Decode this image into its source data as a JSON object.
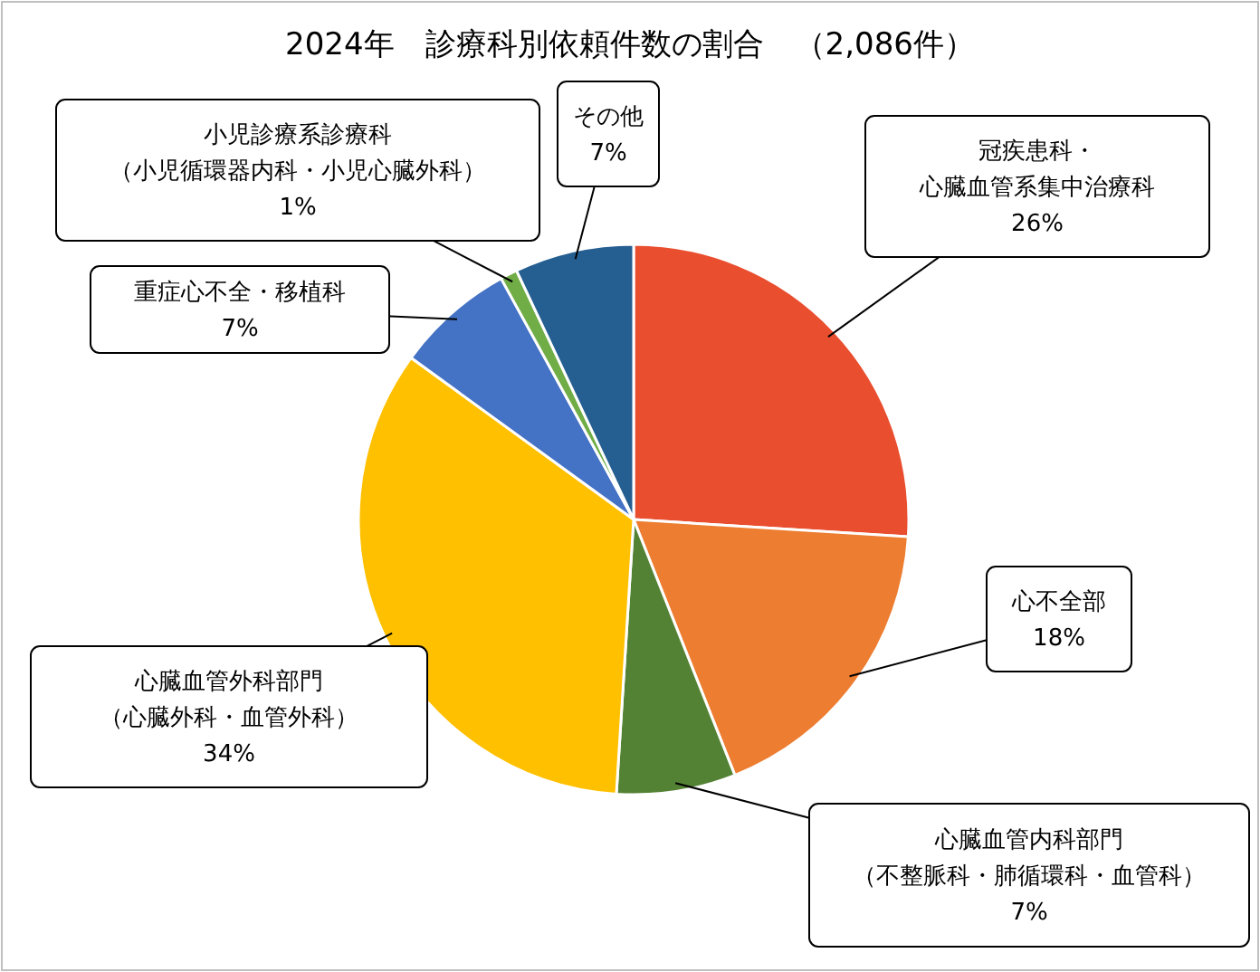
{
  "chart_data": {
    "type": "pie",
    "title": "2024年　診療科別依頼件数の割合　（2,086件）",
    "categories": [
      "冠疾患科・心臓血管系集中治療科",
      "心不全部",
      "心臓血管内科部門（不整脈科・肺循環科・血管科）",
      "心臓血管外科部門（心臓外科・血管外科）",
      "重症心不全・移植科",
      "小児診療系診療科（小児循環器内科・小児心臓外科）",
      "その他"
    ],
    "values": [
      26,
      18,
      7,
      34,
      7,
      1,
      7
    ],
    "value_labels": [
      "26%",
      "18%",
      "7%",
      "34%",
      "7%",
      "1%",
      "7%"
    ],
    "colors": [
      "#e94e2f",
      "#ed7d31",
      "#548235",
      "#ffc000",
      "#4472c4",
      "#70ad47",
      "#255e91"
    ]
  }
}
